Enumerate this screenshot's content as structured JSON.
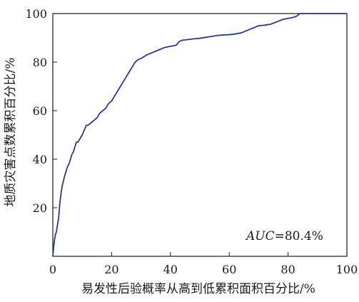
{
  "chart_data": {
    "type": "line",
    "title": "",
    "xlabel": "易发性后验概率从高到低累积面积百分比/%",
    "ylabel": "地质灾害点数累积百分比/%",
    "xlim": [
      0,
      100
    ],
    "ylim": [
      0,
      100
    ],
    "x_ticks": [
      0,
      20,
      40,
      60,
      80,
      100
    ],
    "y_ticks": [
      20,
      40,
      60,
      80,
      100
    ],
    "grid": false,
    "legend": "none",
    "annotation": {
      "prefix": "AUC",
      "value": "=80.4%"
    },
    "series": [
      {
        "color": "#2b3a8c",
        "x": [
          0,
          0.3,
          0.6,
          0.9,
          1.2,
          1.6,
          2.0,
          2.4,
          2.8,
          3.2,
          3.6,
          4.0,
          4.5,
          5.0,
          5.5,
          6.0,
          6.5,
          7.0,
          7.5,
          8.0,
          8.5,
          9.0,
          9.5,
          10,
          10.7,
          11.4,
          12,
          13,
          14,
          15,
          16,
          17,
          18,
          19,
          20,
          21,
          22,
          23,
          24,
          25,
          26,
          27,
          28,
          29,
          30,
          32,
          34,
          36,
          38,
          40,
          42,
          43,
          44,
          46,
          48,
          50,
          52,
          54,
          56,
          58,
          60,
          62,
          64,
          66,
          68,
          70,
          72,
          74,
          76,
          78,
          80,
          82,
          83,
          84,
          88,
          92,
          96,
          100
        ],
        "y": [
          0,
          4,
          7,
          9,
          10,
          13,
          16,
          22,
          26,
          29,
          31,
          33,
          35,
          37,
          38,
          40,
          42,
          43,
          45,
          47,
          47,
          48,
          49,
          50,
          52,
          54,
          54,
          55,
          56,
          57,
          59,
          60,
          61,
          63,
          64,
          66,
          68,
          70,
          72,
          74,
          76,
          78,
          80,
          81,
          81.5,
          83,
          84,
          85,
          86,
          86.5,
          87,
          88.5,
          89,
          89.3,
          89.6,
          89.8,
          90.2,
          90.6,
          91,
          91.2,
          91.3,
          91.6,
          92,
          93,
          94,
          95,
          95.2,
          95.6,
          96.5,
          97.5,
          98,
          98.5,
          99,
          100,
          100,
          100,
          100,
          100
        ]
      }
    ]
  }
}
